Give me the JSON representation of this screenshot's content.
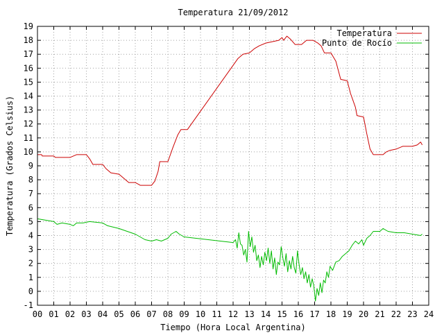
{
  "chart_data": {
    "type": "line",
    "title": "Temperatura 21/09/2012",
    "xlabel": "Tiempo (Hora Local Argentina)",
    "ylabel": "Temperatura (Grados Celsius)",
    "xlim": [
      0,
      24
    ],
    "ylim": [
      -1,
      19
    ],
    "x_ticks": [
      "00",
      "01",
      "02",
      "03",
      "04",
      "05",
      "06",
      "07",
      "08",
      "09",
      "10",
      "11",
      "12",
      "13",
      "14",
      "15",
      "16",
      "17",
      "18",
      "19",
      "20",
      "21",
      "22",
      "23",
      "24"
    ],
    "y_ticks": [
      -1,
      0,
      1,
      2,
      3,
      4,
      5,
      6,
      7,
      8,
      9,
      10,
      11,
      12,
      13,
      14,
      15,
      16,
      17,
      18,
      19
    ],
    "grid": true,
    "legend_position": "top-right",
    "series": [
      {
        "name": "Temperatura",
        "color": "#cc0000",
        "points": [
          [
            0.0,
            9.8
          ],
          [
            0.25,
            9.8
          ],
          [
            0.3,
            9.7
          ],
          [
            1.0,
            9.7
          ],
          [
            1.1,
            9.6
          ],
          [
            2.0,
            9.6
          ],
          [
            2.2,
            9.7
          ],
          [
            2.4,
            9.8
          ],
          [
            3.0,
            9.8
          ],
          [
            3.2,
            9.5
          ],
          [
            3.4,
            9.1
          ],
          [
            4.0,
            9.1
          ],
          [
            4.2,
            8.8
          ],
          [
            4.5,
            8.5
          ],
          [
            5.0,
            8.4
          ],
          [
            5.3,
            8.1
          ],
          [
            5.6,
            7.8
          ],
          [
            6.0,
            7.8
          ],
          [
            6.3,
            7.6
          ],
          [
            7.0,
            7.6
          ],
          [
            7.2,
            7.9
          ],
          [
            7.4,
            8.6
          ],
          [
            7.5,
            9.3
          ],
          [
            8.0,
            9.3
          ],
          [
            8.3,
            10.3
          ],
          [
            8.6,
            11.2
          ],
          [
            8.8,
            11.6
          ],
          [
            9.2,
            11.6
          ],
          [
            12.3,
            16.7
          ],
          [
            12.6,
            17.0
          ],
          [
            13.0,
            17.1
          ],
          [
            13.3,
            17.4
          ],
          [
            13.6,
            17.6
          ],
          [
            14.0,
            17.8
          ],
          [
            14.4,
            17.9
          ],
          [
            14.8,
            18.0
          ],
          [
            15.0,
            18.2
          ],
          [
            15.1,
            18.0
          ],
          [
            15.3,
            18.3
          ],
          [
            15.5,
            18.1
          ],
          [
            15.8,
            17.7
          ],
          [
            16.2,
            17.7
          ],
          [
            16.5,
            18.0
          ],
          [
            16.9,
            18.0
          ],
          [
            17.2,
            17.8
          ],
          [
            17.4,
            17.6
          ],
          [
            17.6,
            17.1
          ],
          [
            18.0,
            17.1
          ],
          [
            18.3,
            16.5
          ],
          [
            18.6,
            15.2
          ],
          [
            19.0,
            15.1
          ],
          [
            19.2,
            14.2
          ],
          [
            19.5,
            13.2
          ],
          [
            19.6,
            12.6
          ],
          [
            20.0,
            12.5
          ],
          [
            20.2,
            11.3
          ],
          [
            20.4,
            10.2
          ],
          [
            20.6,
            9.8
          ],
          [
            21.2,
            9.8
          ],
          [
            21.4,
            10.0
          ],
          [
            21.6,
            10.1
          ],
          [
            22.0,
            10.2
          ],
          [
            22.4,
            10.4
          ],
          [
            23.0,
            10.4
          ],
          [
            23.3,
            10.5
          ],
          [
            23.5,
            10.7
          ],
          [
            23.6,
            10.5
          ]
        ]
      },
      {
        "name": "Punto de Rocío",
        "color": "#00bb00",
        "points": [
          [
            0.0,
            5.2
          ],
          [
            0.5,
            5.1
          ],
          [
            1.0,
            5.0
          ],
          [
            1.2,
            4.8
          ],
          [
            1.5,
            4.9
          ],
          [
            2.0,
            4.8
          ],
          [
            2.2,
            4.7
          ],
          [
            2.4,
            4.9
          ],
          [
            2.8,
            4.9
          ],
          [
            3.2,
            5.0
          ],
          [
            4.0,
            4.9
          ],
          [
            4.3,
            4.7
          ],
          [
            5.0,
            4.5
          ],
          [
            5.5,
            4.3
          ],
          [
            6.0,
            4.1
          ],
          [
            6.3,
            3.9
          ],
          [
            6.6,
            3.7
          ],
          [
            7.0,
            3.6
          ],
          [
            7.3,
            3.7
          ],
          [
            7.6,
            3.6
          ],
          [
            8.0,
            3.8
          ],
          [
            8.2,
            4.1
          ],
          [
            8.5,
            4.3
          ],
          [
            8.7,
            4.1
          ],
          [
            9.0,
            3.9
          ],
          [
            12.0,
            3.5
          ],
          [
            12.15,
            3.7
          ],
          [
            12.25,
            3.1
          ],
          [
            12.35,
            4.2
          ],
          [
            12.45,
            3.4
          ],
          [
            12.55,
            3.3
          ],
          [
            12.65,
            2.6
          ],
          [
            12.75,
            3.0
          ],
          [
            12.85,
            2.1
          ],
          [
            12.95,
            4.3
          ],
          [
            13.05,
            3.2
          ],
          [
            13.15,
            3.9
          ],
          [
            13.25,
            2.8
          ],
          [
            13.35,
            3.3
          ],
          [
            13.45,
            2.2
          ],
          [
            13.55,
            2.6
          ],
          [
            13.65,
            1.7
          ],
          [
            13.75,
            2.5
          ],
          [
            13.85,
            1.9
          ],
          [
            13.95,
            2.8
          ],
          [
            14.05,
            2.2
          ],
          [
            14.15,
            3.1
          ],
          [
            14.25,
            2.0
          ],
          [
            14.35,
            2.9
          ],
          [
            14.45,
            1.6
          ],
          [
            14.55,
            2.4
          ],
          [
            14.65,
            1.2
          ],
          [
            14.75,
            2.1
          ],
          [
            14.85,
            1.9
          ],
          [
            14.95,
            3.2
          ],
          [
            15.05,
            2.4
          ],
          [
            15.15,
            1.8
          ],
          [
            15.25,
            2.7
          ],
          [
            15.35,
            1.4
          ],
          [
            15.45,
            2.2
          ],
          [
            15.55,
            1.6
          ],
          [
            15.65,
            2.5
          ],
          [
            15.75,
            1.7
          ],
          [
            15.85,
            1.3
          ],
          [
            15.95,
            2.9
          ],
          [
            16.05,
            1.9
          ],
          [
            16.15,
            1.2
          ],
          [
            16.25,
            1.7
          ],
          [
            16.35,
            0.9
          ],
          [
            16.45,
            1.4
          ],
          [
            16.55,
            0.6
          ],
          [
            16.65,
            1.2
          ],
          [
            16.75,
            0.3
          ],
          [
            16.85,
            0.9
          ],
          [
            16.95,
            0.4
          ],
          [
            17.05,
            -0.7
          ],
          [
            17.15,
            0.2
          ],
          [
            17.25,
            -0.3
          ],
          [
            17.35,
            0.6
          ],
          [
            17.45,
            -0.1
          ],
          [
            17.55,
            0.8
          ],
          [
            17.65,
            0.6
          ],
          [
            17.75,
            1.4
          ],
          [
            17.85,
            1.0
          ],
          [
            17.95,
            1.8
          ],
          [
            18.1,
            1.5
          ],
          [
            18.3,
            2.1
          ],
          [
            18.5,
            2.2
          ],
          [
            18.7,
            2.5
          ],
          [
            18.9,
            2.7
          ],
          [
            19.1,
            2.9
          ],
          [
            19.3,
            3.3
          ],
          [
            19.5,
            3.6
          ],
          [
            19.7,
            3.4
          ],
          [
            19.9,
            3.7
          ],
          [
            20.0,
            3.3
          ],
          [
            20.2,
            3.8
          ],
          [
            20.4,
            4.0
          ],
          [
            20.6,
            4.3
          ],
          [
            21.0,
            4.3
          ],
          [
            21.2,
            4.5
          ],
          [
            21.5,
            4.3
          ],
          [
            22.0,
            4.2
          ],
          [
            22.5,
            4.2
          ],
          [
            23.0,
            4.1
          ],
          [
            23.5,
            4.0
          ],
          [
            23.6,
            4.1
          ]
        ]
      }
    ]
  }
}
